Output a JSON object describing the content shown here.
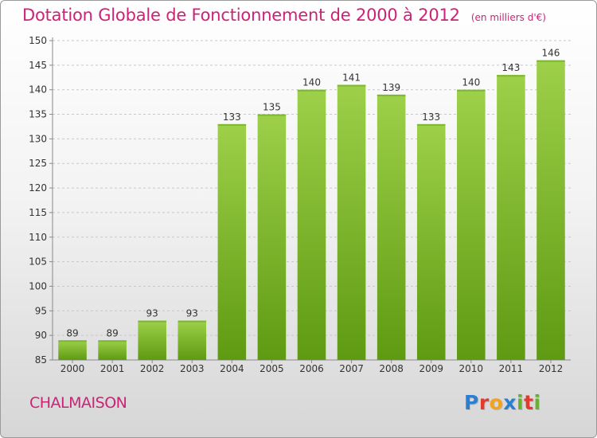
{
  "title": "Dotation Globale de Fonctionnement de 2000 à 2012",
  "subtitle": "(en milliers d'€)",
  "commune": "CHALMAISON",
  "logo": {
    "p": "P",
    "r": "r",
    "o": "o",
    "x": "x",
    "i1": "i",
    "t": "t",
    "i2": "i"
  },
  "colors": {
    "title": "#cc2277",
    "bar_light": "#9ed04a",
    "bar_dark": "#5e9a12",
    "logo": [
      "#2a7fd0",
      "#e23b2e",
      "#f2a21c",
      "#2a7fd0",
      "#66b132",
      "#e23b2e",
      "#66b132"
    ]
  },
  "chart_data": {
    "type": "bar",
    "categories": [
      "2000",
      "2001",
      "2002",
      "2003",
      "2004",
      "2005",
      "2006",
      "2007",
      "2008",
      "2009",
      "2010",
      "2011",
      "2012"
    ],
    "values": [
      89,
      89,
      93,
      93,
      133,
      135,
      140,
      141,
      139,
      133,
      140,
      143,
      146
    ],
    "ylim": [
      85,
      150
    ],
    "yticks": [
      85,
      90,
      95,
      100,
      105,
      110,
      115,
      120,
      125,
      130,
      135,
      140,
      145,
      150
    ],
    "grid": true,
    "xlabel": "",
    "ylabel": ""
  }
}
